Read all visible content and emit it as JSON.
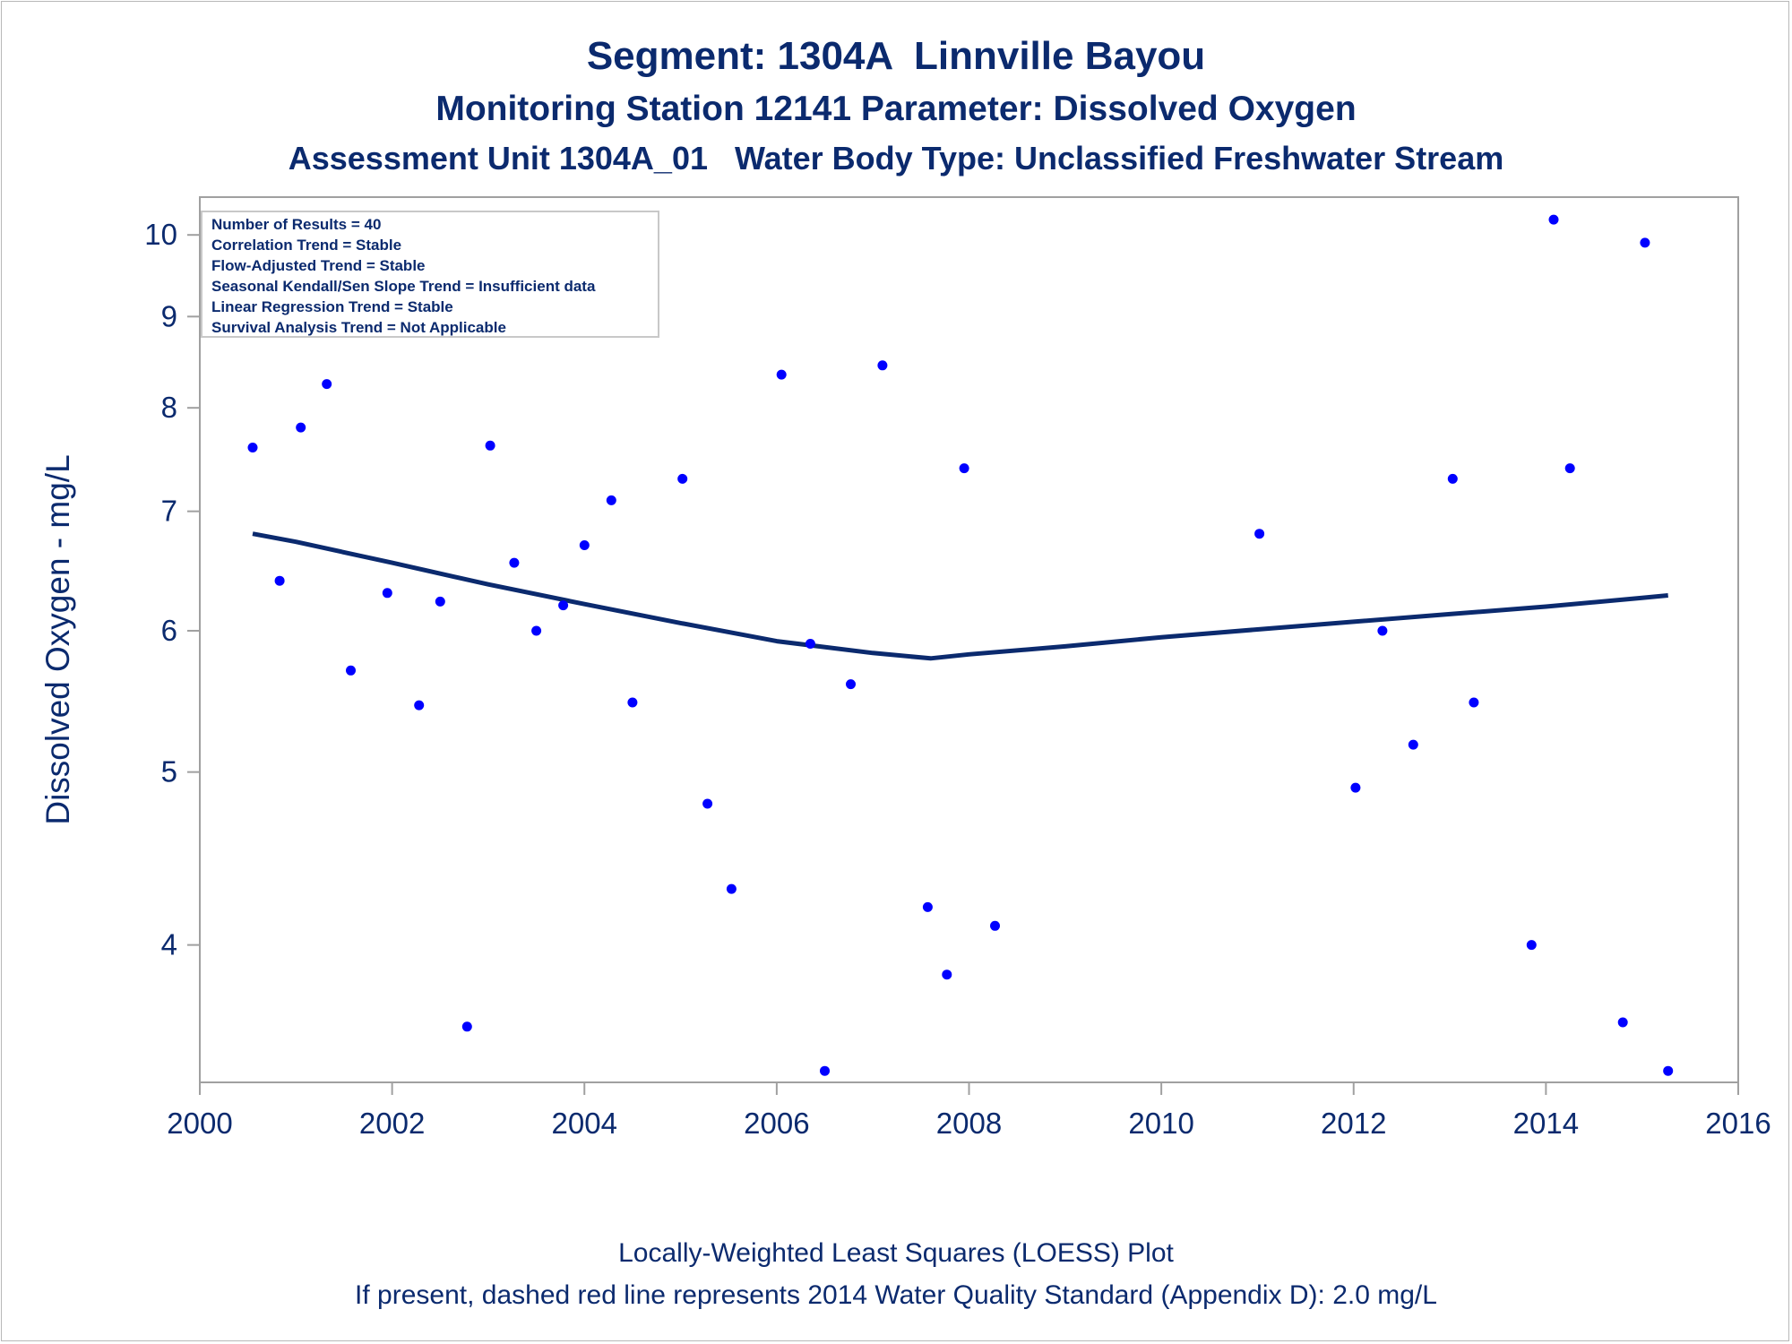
{
  "header": {
    "title": "Segment: 1304A  Linnville Bayou",
    "subtitle": "Monitoring Station 12141 Parameter: Dissolved Oxygen",
    "subtitle2": "Assessment Unit 1304A_01   Water Body Type: Unclassified Freshwater Stream"
  },
  "stats_box": [
    "Number of Results = 40",
    "Correlation Trend = Stable",
    "Flow-Adjusted Trend = Stable",
    "Seasonal Kendall/Sen Slope Trend = Insufficient data",
    "Linear Regression Trend = Stable",
    "Survival Analysis Trend = Not Applicable"
  ],
  "footer": {
    "line1": "Locally-Weighted Least Squares (LOESS) Plot",
    "line2": "If present, dashed red line represents 2014 Water Quality Standard (Appendix D): 2.0 mg/L"
  },
  "colors": {
    "points": "#0000ff",
    "loess_line": "#0b2a6e",
    "text": "#0b2a6e",
    "frame": "#a0a0a0"
  },
  "chart_data": {
    "type": "scatter",
    "xlabel": "",
    "ylabel": "Dissolved Oxygen - mg/L",
    "y_scale": "log",
    "xlim": [
      2000,
      2016
    ],
    "ylim": [
      3.35,
      10.5
    ],
    "x_ticks": [
      "2000",
      "2002",
      "2004",
      "2006",
      "2008",
      "2010",
      "2012",
      "2014",
      "2016"
    ],
    "y_ticks": [
      "4",
      "5",
      "6",
      "7",
      "8",
      "9",
      "10"
    ],
    "grid": false,
    "series": [
      {
        "kind": "points",
        "x": [
          2000.55,
          2000.83,
          2001.05,
          2001.32,
          2001.57,
          2001.95,
          2002.28,
          2002.5,
          2002.78,
          2003.02,
          2003.27,
          2003.5,
          2003.78,
          2004.0,
          2004.28,
          2004.5,
          2005.02,
          2005.28,
          2005.53,
          2006.05,
          2006.35,
          2006.5,
          2006.77,
          2007.1,
          2007.57,
          2007.77,
          2007.95,
          2008.27,
          2011.02,
          2012.02,
          2012.3,
          2012.62,
          2013.03,
          2013.25,
          2013.85,
          2014.08,
          2014.25,
          2014.8,
          2015.03,
          2015.27
        ],
        "y": [
          7.6,
          6.4,
          7.8,
          8.25,
          5.7,
          6.3,
          5.45,
          6.23,
          3.6,
          7.62,
          6.55,
          6.0,
          6.2,
          6.7,
          7.1,
          5.47,
          7.3,
          4.8,
          4.3,
          8.35,
          5.9,
          3.4,
          5.6,
          8.45,
          4.2,
          3.85,
          7.4,
          4.1,
          6.8,
          4.9,
          6.0,
          5.18,
          7.3,
          5.47,
          4.0,
          10.2,
          7.4,
          3.62,
          9.9,
          3.4
        ]
      },
      {
        "kind": "loess",
        "x": [
          2000.55,
          2001.0,
          2002.0,
          2003.0,
          2004.0,
          2005.0,
          2006.0,
          2007.0,
          2007.6,
          2008.0,
          2009.0,
          2010.0,
          2011.0,
          2012.0,
          2013.0,
          2014.0,
          2015.0,
          2015.27
        ],
        "y": [
          6.8,
          6.73,
          6.55,
          6.37,
          6.21,
          6.06,
          5.92,
          5.83,
          5.79,
          5.82,
          5.88,
          5.95,
          6.01,
          6.07,
          6.13,
          6.19,
          6.26,
          6.28
        ]
      }
    ]
  }
}
